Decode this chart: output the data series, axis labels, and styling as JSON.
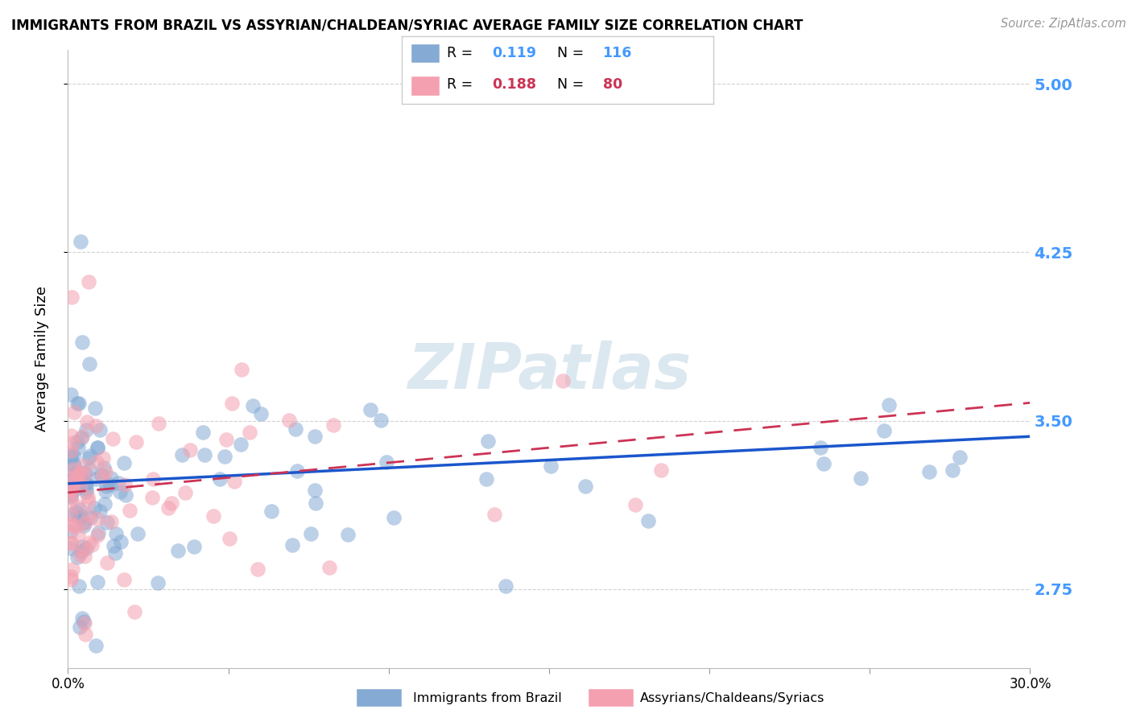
{
  "title": "IMMIGRANTS FROM BRAZIL VS ASSYRIAN/CHALDEAN/SYRIAC AVERAGE FAMILY SIZE CORRELATION CHART",
  "source": "Source: ZipAtlas.com",
  "ylabel": "Average Family Size",
  "xlim": [
    0.0,
    0.3
  ],
  "ylim": [
    2.4,
    5.15
  ],
  "yticks": [
    2.75,
    3.5,
    4.25,
    5.0
  ],
  "right_ytick_labels": [
    "2.75",
    "3.50",
    "4.25",
    "5.00"
  ],
  "xticks": [
    0.0,
    0.05,
    0.1,
    0.15,
    0.2,
    0.25,
    0.3
  ],
  "brazil_color": "#85aad4",
  "assyrian_color": "#f4a0b0",
  "brazil_line_color": "#1a56cc",
  "assyrian_line_color": "#cc3355",
  "brazil_R": "0.119",
  "brazil_N": "116",
  "assyrian_R": "0.188",
  "assyrian_N": "80",
  "background_color": "#ffffff",
  "grid_color": "#cccccc",
  "watermark": "ZIPatlas",
  "watermark_color": "#dce8f0",
  "legend_label_brazil": "Immigrants from Brazil",
  "legend_label_assyrian": "Assyrians/Chaldeans/Syriacs",
  "brazil_line_y0": 3.22,
  "brazil_line_y1": 3.43,
  "assyrian_line_y0": 3.18,
  "assyrian_line_y1": 3.58
}
